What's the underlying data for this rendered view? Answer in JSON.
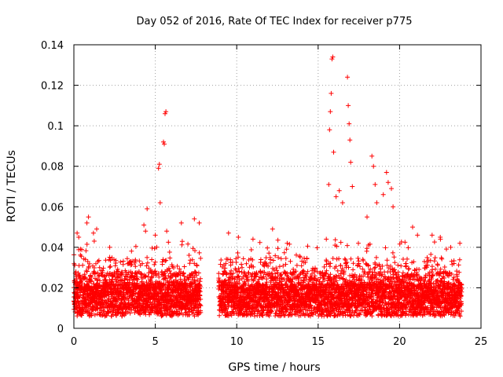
{
  "chart_data": {
    "type": "scatter",
    "title": "Day 052 of 2016, Rate Of TEC Index for receiver p775",
    "xlabel": "GPS time / hours",
    "ylabel": "ROTI / TECUs",
    "xlim": [
      0,
      25
    ],
    "ylim": [
      0,
      0.14
    ],
    "xticks": [
      "0",
      "5",
      "10",
      "15",
      "20",
      "25"
    ],
    "yticks": [
      "0",
      "0.02",
      "0.04",
      "0.06",
      "0.08",
      "0.1",
      "0.12",
      "0.14"
    ],
    "grid": true,
    "marker": "plus",
    "color": "#ff0000",
    "data_gap_hours": [
      7.8,
      8.9
    ],
    "series": [
      {
        "name": "ROTI",
        "points": [
          [
            0.2,
            0.047
          ],
          [
            0.3,
            0.045
          ],
          [
            0.8,
            0.052
          ],
          [
            0.9,
            0.055
          ],
          [
            1.2,
            0.047
          ],
          [
            1.4,
            0.049
          ],
          [
            2.2,
            0.04
          ],
          [
            4.3,
            0.051
          ],
          [
            4.4,
            0.048
          ],
          [
            4.5,
            0.059
          ],
          [
            5.0,
            0.046
          ],
          [
            5.2,
            0.079
          ],
          [
            5.25,
            0.081
          ],
          [
            5.3,
            0.062
          ],
          [
            5.5,
            0.092
          ],
          [
            5.55,
            0.091
          ],
          [
            5.6,
            0.106
          ],
          [
            5.65,
            0.107
          ],
          [
            5.7,
            0.048
          ],
          [
            6.6,
            0.052
          ],
          [
            7.4,
            0.054
          ],
          [
            7.7,
            0.052
          ],
          [
            9.5,
            0.047
          ],
          [
            10.1,
            0.045
          ],
          [
            11.0,
            0.044
          ],
          [
            12.2,
            0.049
          ],
          [
            13.1,
            0.042
          ],
          [
            15.5,
            0.044
          ],
          [
            15.65,
            0.071
          ],
          [
            15.7,
            0.098
          ],
          [
            15.75,
            0.107
          ],
          [
            15.8,
            0.116
          ],
          [
            15.85,
            0.133
          ],
          [
            15.9,
            0.134
          ],
          [
            15.95,
            0.087
          ],
          [
            16.1,
            0.065
          ],
          [
            16.3,
            0.068
          ],
          [
            16.5,
            0.062
          ],
          [
            16.8,
            0.124
          ],
          [
            16.85,
            0.11
          ],
          [
            16.9,
            0.101
          ],
          [
            16.95,
            0.093
          ],
          [
            17.0,
            0.082
          ],
          [
            17.1,
            0.07
          ],
          [
            18.0,
            0.055
          ],
          [
            18.3,
            0.085
          ],
          [
            18.4,
            0.08
          ],
          [
            18.5,
            0.071
          ],
          [
            18.6,
            0.062
          ],
          [
            19.0,
            0.066
          ],
          [
            19.2,
            0.077
          ],
          [
            19.3,
            0.072
          ],
          [
            19.5,
            0.069
          ],
          [
            19.6,
            0.06
          ],
          [
            20.8,
            0.05
          ],
          [
            21.1,
            0.046
          ],
          [
            22.0,
            0.046
          ],
          [
            22.5,
            0.045
          ],
          [
            23.7,
            0.042
          ]
        ]
      }
    ]
  }
}
